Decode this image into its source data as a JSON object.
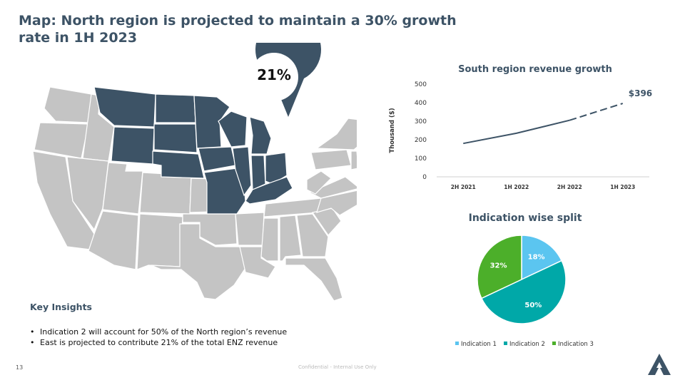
{
  "slide": {
    "title": "Map: North region is projected to maintain a 30% growth rate in 1H 2023",
    "page_number": "13",
    "footer_note": "Confidential - Internal Use Only"
  },
  "map": {
    "callout_value": "21%",
    "highlight_color": "#3d5366",
    "base_color": "#c4c4c4"
  },
  "insights": {
    "title": "Key Insights",
    "bullets": [
      "Indication 2 will account for 50% of the North region’s revenue",
      "East is projected to contribute 21% of the total ENZ revenue"
    ]
  },
  "chart_data": [
    {
      "type": "line",
      "title": "South region revenue growth",
      "ylabel": "Thousand ($)",
      "xlabel": "",
      "categories": [
        "2H 2021",
        "1H 2022",
        "2H 2022",
        "1H 2023"
      ],
      "series": [
        {
          "values": [
            180,
            235,
            305,
            396
          ],
          "projected_from_index": 2,
          "color": "#3d5366"
        }
      ],
      "data_labels": [
        {
          "index": 3,
          "text": "$396"
        }
      ],
      "ylim": [
        0,
        500
      ],
      "yticks": [
        0,
        100,
        200,
        300,
        400,
        500
      ],
      "grid": false
    },
    {
      "type": "pie",
      "title": "Indication wise split",
      "slices": [
        {
          "label": "Indication 1",
          "value": 18,
          "text": "18%",
          "color": "#5bc5f0"
        },
        {
          "label": "Indication 2",
          "value": 50,
          "text": "50%",
          "color": "#00a8a8"
        },
        {
          "label": "Indication 3",
          "value": 32,
          "text": "32%",
          "color": "#4caf2a"
        }
      ],
      "legend": "bottom"
    }
  ]
}
